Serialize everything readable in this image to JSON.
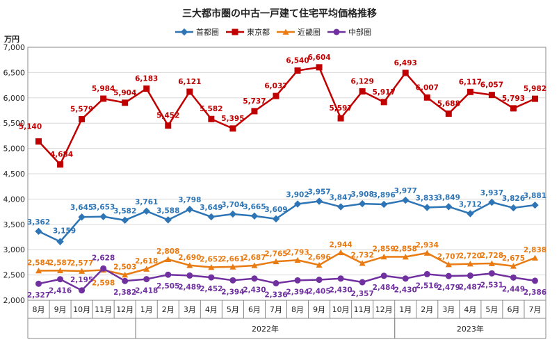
{
  "chart_data": {
    "type": "line",
    "title": "三大都市圏の中古一戸建て住宅平均価格推移",
    "ylabel": "万円",
    "ylim": [
      2000,
      7000
    ],
    "yticks": [
      2000,
      2500,
      3000,
      3500,
      4000,
      4500,
      5000,
      5500,
      6000,
      6500,
      7000
    ],
    "ytick_labels": [
      "2,000",
      "2,500",
      "3,000",
      "3,500",
      "4,000",
      "4,500",
      "5,000",
      "5,500",
      "6,000",
      "6,500",
      "7,000"
    ],
    "grid": true,
    "legend_position": "top",
    "categories": [
      "8月",
      "9月",
      "10月",
      "11月",
      "12月",
      "1月",
      "2月",
      "3月",
      "4月",
      "5月",
      "6月",
      "7月",
      "8月",
      "9月",
      "10月",
      "11月",
      "12月",
      "1月",
      "2月",
      "3月",
      "4月",
      "5月",
      "6月",
      "7月"
    ],
    "year_groups": [
      {
        "label": "",
        "start": 0,
        "end": 4
      },
      {
        "label": "2022年",
        "start": 5,
        "end": 16
      },
      {
        "label": "2023年",
        "start": 17,
        "end": 23
      }
    ],
    "series": [
      {
        "name": "首都圏",
        "color": "#2E75B6",
        "marker": "diamond",
        "values": [
          3362,
          3159,
          3645,
          3653,
          3582,
          3761,
          3588,
          3798,
          3649,
          3704,
          3665,
          3609,
          3902,
          3957,
          3847,
          3908,
          3896,
          3977,
          3833,
          3849,
          3712,
          3937,
          3826,
          3881
        ],
        "labels": [
          "3,362",
          "3,159",
          "3,645",
          "3,653",
          "3,582",
          "3,761",
          "3,588",
          "3,798",
          "3,649",
          "3,704",
          "3,665",
          "3,609",
          "3,902",
          "3,957",
          "3,847",
          "3,908",
          "3,896",
          "3,977",
          "3,833",
          "3,849",
          "3,712",
          "3,937",
          "3,826",
          "3,881"
        ]
      },
      {
        "name": "東京都",
        "color": "#C00000",
        "marker": "square",
        "values": [
          5140,
          4684,
          5579,
          5984,
          5904,
          6183,
          5452,
          6121,
          5582,
          5395,
          5737,
          6037,
          6540,
          6604,
          5597,
          6129,
          5917,
          6493,
          6007,
          5688,
          6117,
          6057,
          5793,
          5982
        ],
        "labels": [
          "5,140",
          "4,684",
          "5,579",
          "5,984",
          "5,904",
          "6,183",
          "5,452",
          "6,121",
          "5,582",
          "5,395",
          "5,737",
          "6,037",
          "6,540",
          "6,604",
          "5,597",
          "6,129",
          "5,917",
          "6,493",
          "6,007",
          "5,688",
          "6,117",
          "6,057",
          "5,793",
          "5,982"
        ]
      },
      {
        "name": "近畿圏",
        "color": "#E97B12",
        "marker": "triangle",
        "values": [
          2584,
          2587,
          2577,
          2598,
          2503,
          2618,
          2808,
          2690,
          2652,
          2661,
          2687,
          2765,
          2793,
          2696,
          2944,
          2732,
          2859,
          2858,
          2934,
          2707,
          2720,
          2728,
          2675,
          2838
        ],
        "labels": [
          "2,584",
          "2,587",
          "2,577",
          "2,598",
          "2,503",
          "2,618",
          "2,808",
          "2,690",
          "2,652",
          "2,661",
          "2,687",
          "2,765",
          "2,793",
          "2,696",
          "2,944",
          "2,732",
          "2,859",
          "2,858",
          "2,934",
          "2,707",
          "2,720",
          "2,728",
          "2,675",
          "2,838"
        ]
      },
      {
        "name": "中部圏",
        "color": "#7030A0",
        "marker": "circle",
        "values": [
          2327,
          2416,
          2195,
          2628,
          2382,
          2418,
          2505,
          2489,
          2452,
          2394,
          2430,
          2336,
          2394,
          2405,
          2430,
          2357,
          2484,
          2430,
          2516,
          2479,
          2487,
          2531,
          2449,
          2386
        ],
        "labels": [
          "2,327",
          "2,416",
          "2,195",
          "2,628",
          "2,382",
          "2,418",
          "2,505",
          "2,489",
          "2,452",
          "2,394",
          "2,430",
          "2,336",
          "2,394",
          "2,405",
          "2,430",
          "2,357",
          "2,484",
          "2,430",
          "2,516",
          "2,479",
          "2,487",
          "2,531",
          "2,449",
          "2,386"
        ]
      }
    ]
  }
}
